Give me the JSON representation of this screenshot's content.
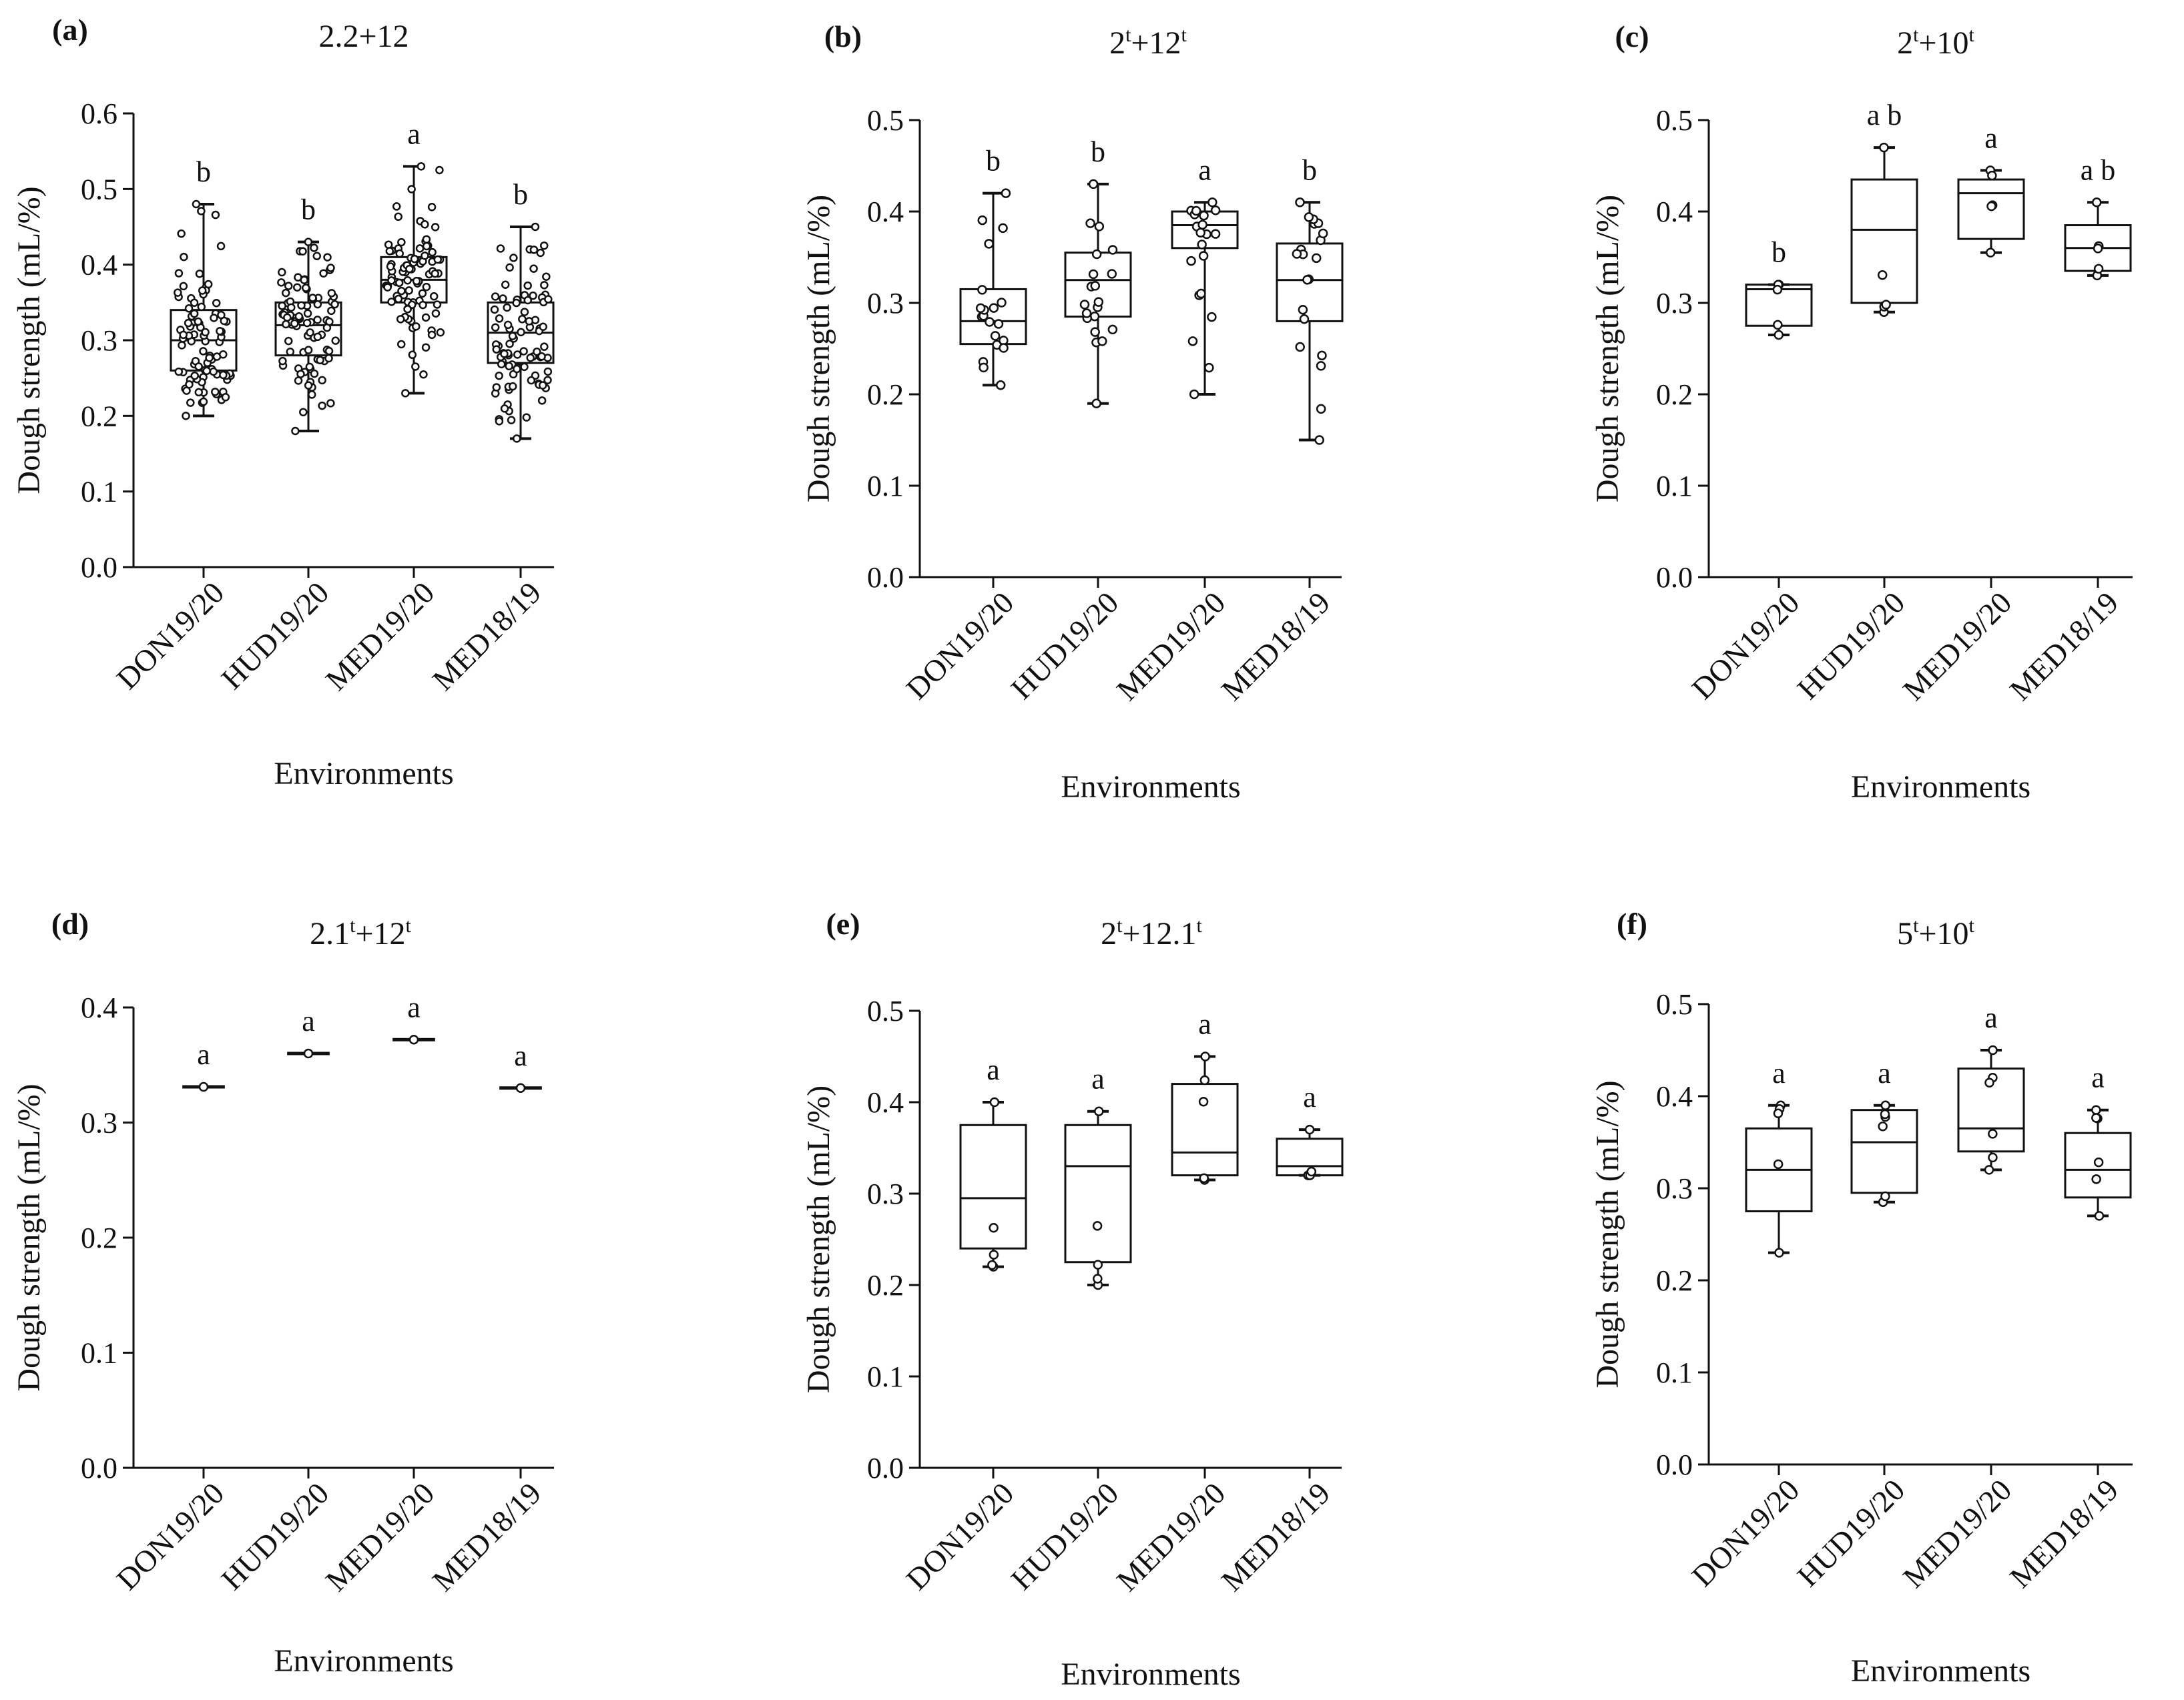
{
  "figure": {
    "description_free": true
  },
  "chart_data": [
    {
      "panel": "(a)",
      "type": "box",
      "title": {
        "base": "2.2+12",
        "sup": []
      },
      "title_parts": [
        {
          "t": "2.2+12",
          "sup": false
        }
      ],
      "xlabel": "Environments",
      "ylabel": "Dough strength (mL/%)",
      "ylim": [
        0,
        0.6
      ],
      "yticks": [
        0.0,
        0.1,
        0.2,
        0.3,
        0.4,
        0.5,
        0.6
      ],
      "ytick_labels": [
        "0.0",
        "0.1",
        "0.2",
        "0.3",
        "0.4",
        "0.5",
        "0.6"
      ],
      "categories": [
        "DON19/20",
        "HUD19/20",
        "MED19/20",
        "MED18/19"
      ],
      "boxes": [
        {
          "min": 0.2,
          "q1": 0.26,
          "median": 0.3,
          "q3": 0.34,
          "max": 0.48,
          "n": 90,
          "sig": "b"
        },
        {
          "min": 0.18,
          "q1": 0.28,
          "median": 0.32,
          "q3": 0.35,
          "max": 0.43,
          "n": 90,
          "sig": "b"
        },
        {
          "min": 0.23,
          "q1": 0.35,
          "median": 0.38,
          "q3": 0.41,
          "max": 0.53,
          "n": 90,
          "sig": "a"
        },
        {
          "min": 0.17,
          "q1": 0.27,
          "median": 0.31,
          "q3": 0.35,
          "max": 0.45,
          "n": 90,
          "sig": "b"
        }
      ]
    },
    {
      "panel": "(b)",
      "type": "box",
      "title_parts": [
        {
          "t": "2",
          "sup": false
        },
        {
          "t": "t",
          "sup": true
        },
        {
          "t": "+12",
          "sup": false
        },
        {
          "t": "t",
          "sup": true
        }
      ],
      "xlabel": "Environments",
      "ylabel": "Dough strength (mL/%)",
      "ylim": [
        0,
        0.5
      ],
      "yticks": [
        0.0,
        0.1,
        0.2,
        0.3,
        0.4,
        0.5
      ],
      "ytick_labels": [
        "0.0",
        "0.1",
        "0.2",
        "0.3",
        "0.4",
        "0.5"
      ],
      "categories": [
        "DON19/20",
        "HUD19/20",
        "MED19/20",
        "MED18/19"
      ],
      "boxes": [
        {
          "min": 0.21,
          "q1": 0.255,
          "median": 0.28,
          "q3": 0.315,
          "max": 0.42,
          "n": 20,
          "sig": "b"
        },
        {
          "min": 0.19,
          "q1": 0.285,
          "median": 0.325,
          "q3": 0.355,
          "max": 0.43,
          "n": 20,
          "sig": "b"
        },
        {
          "min": 0.2,
          "q1": 0.36,
          "median": 0.385,
          "q3": 0.4,
          "max": 0.41,
          "n": 20,
          "sig": "a"
        },
        {
          "min": 0.15,
          "q1": 0.28,
          "median": 0.325,
          "q3": 0.365,
          "max": 0.41,
          "n": 20,
          "sig": "b"
        }
      ]
    },
    {
      "panel": "(c)",
      "type": "box",
      "title_parts": [
        {
          "t": "2",
          "sup": false
        },
        {
          "t": "t",
          "sup": true
        },
        {
          "t": "+10",
          "sup": false
        },
        {
          "t": "t",
          "sup": true
        }
      ],
      "xlabel": "Environments",
      "ylabel": "Dough strength (mL/%)",
      "ylim": [
        0,
        0.5
      ],
      "yticks": [
        0.0,
        0.1,
        0.2,
        0.3,
        0.4,
        0.5
      ],
      "ytick_labels": [
        "0.0",
        "0.1",
        "0.2",
        "0.3",
        "0.4",
        "0.5"
      ],
      "categories": [
        "DON19/20",
        "HUD19/20",
        "MED19/20",
        "MED18/19"
      ],
      "boxes": [
        {
          "min": 0.265,
          "q1": 0.275,
          "median": 0.315,
          "q3": 0.32,
          "max": 0.32,
          "n": 5,
          "sig": "b"
        },
        {
          "min": 0.29,
          "q1": 0.3,
          "median": 0.38,
          "q3": 0.435,
          "max": 0.47,
          "n": 5,
          "sig": "a b"
        },
        {
          "min": 0.355,
          "q1": 0.37,
          "median": 0.42,
          "q3": 0.435,
          "max": 0.445,
          "n": 5,
          "sig": "a"
        },
        {
          "min": 0.33,
          "q1": 0.335,
          "median": 0.36,
          "q3": 0.385,
          "max": 0.41,
          "n": 5,
          "sig": "a b"
        }
      ]
    },
    {
      "panel": "(d)",
      "type": "box",
      "title_parts": [
        {
          "t": "2.1",
          "sup": false
        },
        {
          "t": "t",
          "sup": true
        },
        {
          "t": "+12",
          "sup": false
        },
        {
          "t": "t",
          "sup": true
        }
      ],
      "xlabel": "Environments",
      "ylabel": "Dough strength (mL/%)",
      "ylim": [
        0,
        0.4
      ],
      "yticks": [
        0.0,
        0.1,
        0.2,
        0.3,
        0.4
      ],
      "ytick_labels": [
        "0.0",
        "0.1",
        "0.2",
        "0.3",
        "0.4"
      ],
      "categories": [
        "DON19/20",
        "HUD19/20",
        "MED19/20",
        "MED18/19"
      ],
      "boxes": [
        {
          "min": 0.331,
          "q1": 0.331,
          "median": 0.331,
          "q3": 0.331,
          "max": 0.331,
          "n": 1,
          "sig": "a"
        },
        {
          "min": 0.36,
          "q1": 0.36,
          "median": 0.36,
          "q3": 0.36,
          "max": 0.36,
          "n": 1,
          "sig": "a"
        },
        {
          "min": 0.372,
          "q1": 0.372,
          "median": 0.372,
          "q3": 0.372,
          "max": 0.372,
          "n": 1,
          "sig": "a"
        },
        {
          "min": 0.33,
          "q1": 0.33,
          "median": 0.33,
          "q3": 0.33,
          "max": 0.33,
          "n": 1,
          "sig": "a"
        }
      ]
    },
    {
      "panel": "(e)",
      "type": "box",
      "title_parts": [
        {
          "t": "2",
          "sup": false
        },
        {
          "t": "t",
          "sup": true
        },
        {
          "t": "+12.1",
          "sup": false
        },
        {
          "t": "t",
          "sup": true
        }
      ],
      "xlabel": "Environments",
      "ylabel": "Dough strength (mL/%)",
      "ylim": [
        0,
        0.5
      ],
      "yticks": [
        0.0,
        0.1,
        0.2,
        0.3,
        0.4,
        0.5
      ],
      "ytick_labels": [
        "0.0",
        "0.1",
        "0.2",
        "0.3",
        "0.4",
        "0.5"
      ],
      "categories": [
        "DON19/20",
        "HUD19/20",
        "MED19/20",
        "MED18/19"
      ],
      "boxes": [
        {
          "min": 0.22,
          "q1": 0.24,
          "median": 0.295,
          "q3": 0.375,
          "max": 0.4,
          "n": 5,
          "sig": "a"
        },
        {
          "min": 0.2,
          "q1": 0.225,
          "median": 0.33,
          "q3": 0.375,
          "max": 0.39,
          "n": 5,
          "sig": "a"
        },
        {
          "min": 0.315,
          "q1": 0.32,
          "median": 0.345,
          "q3": 0.42,
          "max": 0.45,
          "n": 5,
          "sig": "a"
        },
        {
          "min": 0.32,
          "q1": 0.32,
          "median": 0.33,
          "q3": 0.36,
          "max": 0.37,
          "n": 5,
          "sig": "a"
        }
      ]
    },
    {
      "panel": "(f)",
      "type": "box",
      "title_parts": [
        {
          "t": "5",
          "sup": false
        },
        {
          "t": "t",
          "sup": true
        },
        {
          "t": "+10",
          "sup": false
        },
        {
          "t": "t",
          "sup": true
        }
      ],
      "xlabel": "Environments",
      "ylabel": "Dough strength (mL/%)",
      "ylim": [
        0,
        0.5
      ],
      "yticks": [
        0.0,
        0.1,
        0.2,
        0.3,
        0.4,
        0.5
      ],
      "ytick_labels": [
        "0.0",
        "0.1",
        "0.2",
        "0.3",
        "0.4",
        "0.5"
      ],
      "categories": [
        "DON19/20",
        "HUD19/20",
        "MED19/20",
        "MED18/19"
      ],
      "boxes": [
        {
          "min": 0.23,
          "q1": 0.275,
          "median": 0.32,
          "q3": 0.365,
          "max": 0.39,
          "n": 5,
          "sig": "a"
        },
        {
          "min": 0.285,
          "q1": 0.295,
          "median": 0.35,
          "q3": 0.385,
          "max": 0.39,
          "n": 6,
          "sig": "a"
        },
        {
          "min": 0.32,
          "q1": 0.34,
          "median": 0.365,
          "q3": 0.43,
          "max": 0.45,
          "n": 6,
          "sig": "a"
        },
        {
          "min": 0.27,
          "q1": 0.29,
          "median": 0.32,
          "q3": 0.36,
          "max": 0.385,
          "n": 6,
          "sig": "a"
        }
      ]
    }
  ]
}
